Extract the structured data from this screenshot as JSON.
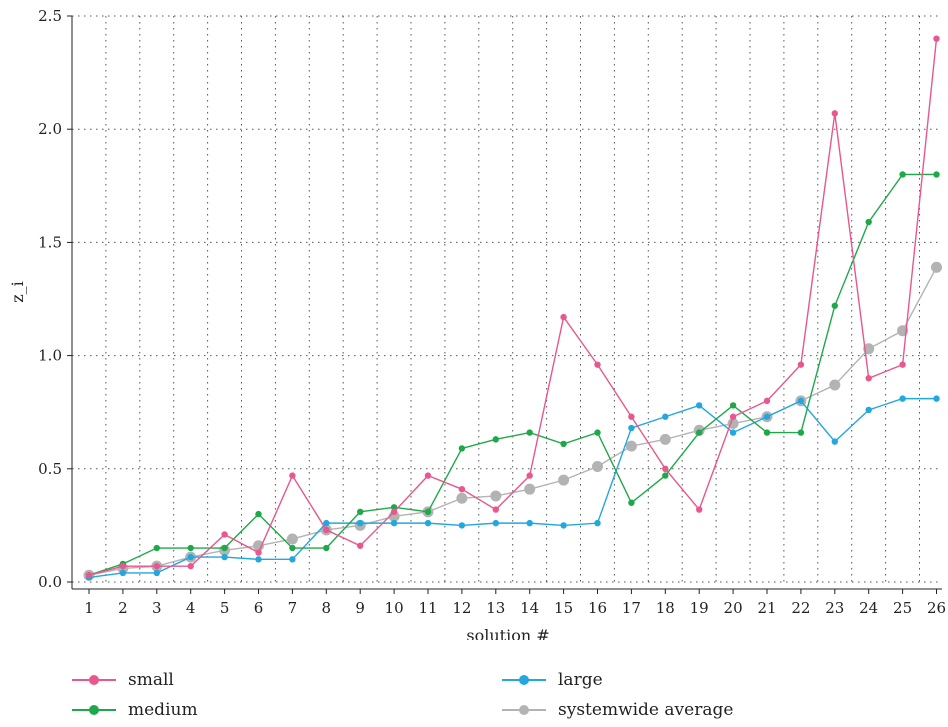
{
  "chart_data": {
    "type": "line",
    "xlabel": "solution #",
    "ylabel": "z_i",
    "categories": [
      "1",
      "2",
      "3",
      "4",
      "5",
      "6",
      "7",
      "8",
      "9",
      "10",
      "11",
      "12",
      "13",
      "14",
      "15",
      "16",
      "17",
      "18",
      "19",
      "20",
      "21",
      "22",
      "23",
      "24",
      "25",
      "26"
    ],
    "ylim": [
      0,
      2.5
    ],
    "yticks": [
      "0.0",
      "0.5",
      "1.0",
      "1.5",
      "2.0",
      "2.5"
    ],
    "grid": "dotted",
    "legend_position": "bottom",
    "series": [
      {
        "name": "small",
        "color": "#e8578d",
        "values": [
          0.03,
          0.07,
          0.07,
          0.07,
          0.21,
          0.13,
          0.47,
          0.23,
          0.16,
          0.31,
          0.47,
          0.41,
          0.32,
          0.47,
          1.17,
          0.96,
          0.73,
          0.5,
          0.32,
          0.73,
          0.8,
          0.96,
          2.07,
          0.9,
          0.96,
          2.4
        ]
      },
      {
        "name": "medium",
        "color": "#1fa84a",
        "values": [
          0.03,
          0.08,
          0.15,
          0.15,
          0.15,
          0.3,
          0.15,
          0.15,
          0.31,
          0.33,
          0.31,
          0.59,
          0.63,
          0.66,
          0.61,
          0.66,
          0.35,
          0.47,
          0.66,
          0.78,
          0.66,
          0.66,
          1.22,
          1.59,
          1.8,
          1.8
        ]
      },
      {
        "name": "large",
        "color": "#22a7df",
        "values": [
          0.02,
          0.04,
          0.04,
          0.11,
          0.11,
          0.1,
          0.1,
          0.26,
          0.26,
          0.26,
          0.26,
          0.25,
          0.26,
          0.26,
          0.25,
          0.26,
          0.68,
          0.73,
          0.78,
          0.66,
          0.73,
          0.8,
          0.62,
          0.76,
          0.81,
          0.81
        ]
      },
      {
        "name": "systemwide average",
        "color": "#b3b3b3",
        "values": [
          0.03,
          0.06,
          0.07,
          0.11,
          0.14,
          0.16,
          0.19,
          0.23,
          0.25,
          0.29,
          0.31,
          0.37,
          0.38,
          0.41,
          0.45,
          0.51,
          0.6,
          0.63,
          0.67,
          0.7,
          0.73,
          0.8,
          0.87,
          1.03,
          1.11,
          1.39
        ]
      }
    ]
  }
}
